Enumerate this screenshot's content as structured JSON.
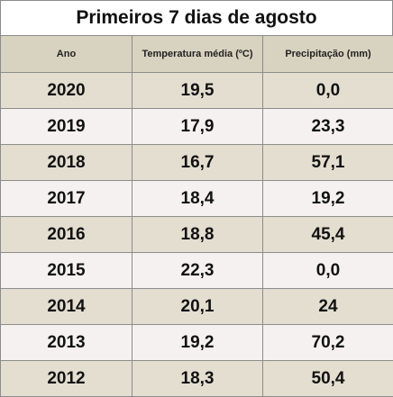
{
  "title": "Primeiros 7 dias de agosto",
  "headers": {
    "year": "Ano",
    "temperature": "Temperatura média (ºC)",
    "precipitation": "Precipitação (mm)"
  },
  "rows": [
    {
      "year": "2020",
      "temperature": "19,5",
      "precipitation": "0,0"
    },
    {
      "year": "2019",
      "temperature": "17,9",
      "precipitation": "23,3"
    },
    {
      "year": "2018",
      "temperature": "16,7",
      "precipitation": "57,1"
    },
    {
      "year": "2017",
      "temperature": "18,4",
      "precipitation": "19,2"
    },
    {
      "year": "2016",
      "temperature": "18,8",
      "precipitation": "45,4"
    },
    {
      "year": "2015",
      "temperature": "22,3",
      "precipitation": "0,0"
    },
    {
      "year": "2014",
      "temperature": "20,1",
      "precipitation": "24"
    },
    {
      "year": "2013",
      "temperature": "19,2",
      "precipitation": "70,2"
    },
    {
      "year": "2012",
      "temperature": "18,3",
      "precipitation": "50,4"
    }
  ]
}
